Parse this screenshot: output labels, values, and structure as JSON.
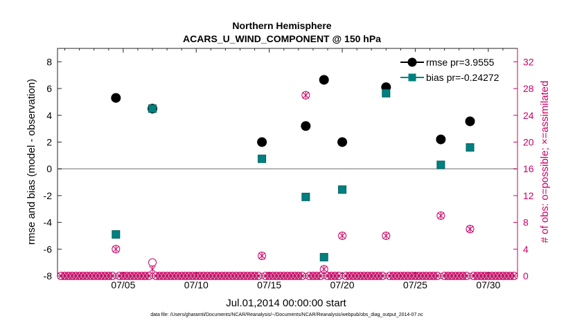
{
  "colors": {
    "rmse": "#000000",
    "bias": "#008080",
    "obs": "#cc0066",
    "zero_line": "#b3b3b3",
    "axis": "#262626"
  },
  "chart_data": {
    "type": "scatter",
    "title": "Northern Hemisphere",
    "subtitle": "ACARS_U_WIND_COMPONENT @ 150 hPa",
    "xlabel": "Jul.01,2014 00:00:00 start",
    "ylabel_left": "rmse and bias (model - observation)",
    "ylabel_right": "# of obs: o=possible; ×=assimilated",
    "xlim": [
      0.5,
      32.0
    ],
    "ylim_left": [
      -8,
      9
    ],
    "ylim_right": [
      0,
      34
    ],
    "x_ticks": [
      5,
      10,
      15,
      20,
      25,
      30
    ],
    "x_tick_labels": [
      "07/05",
      "07/10",
      "07/15",
      "07/20",
      "07/25",
      "07/30"
    ],
    "y_left_ticks": [
      -8,
      -6,
      -4,
      -2,
      0,
      2,
      4,
      6,
      8
    ],
    "y_left_tick_labels": [
      "-8",
      "-6",
      "-4",
      "-2",
      "0",
      "2",
      "4",
      "6",
      "8"
    ],
    "y_right_ticks": [
      0,
      4,
      8,
      12,
      16,
      20,
      24,
      28,
      32
    ],
    "y_right_tick_labels": [
      "0",
      "4",
      "8",
      "12",
      "16",
      "20",
      "24",
      "28",
      "32"
    ],
    "grid": false,
    "legend": {
      "position": "top-right",
      "entries": [
        "rmse pr=3.9555",
        "bias pr=-0.24272"
      ]
    },
    "series": [
      {
        "name": "rmse pr=3.9555",
        "marker": "circle",
        "x": [
          4.5,
          7.0,
          14.5,
          17.5,
          18.75,
          20.0,
          23.0,
          26.75,
          28.75
        ],
        "values": [
          5.3,
          4.5,
          2.0,
          3.2,
          6.65,
          2.0,
          6.1,
          2.2,
          3.55
        ]
      },
      {
        "name": "bias pr=-0.24272",
        "marker": "square",
        "x": [
          4.5,
          7.0,
          14.5,
          17.5,
          18.75,
          20.0,
          23.0,
          26.75,
          28.75
        ],
        "values": [
          -4.9,
          4.5,
          0.75,
          -2.1,
          -6.6,
          -1.55,
          5.65,
          0.3,
          1.6
        ]
      }
    ],
    "obs_possible": {
      "x_start": 0.75,
      "x_step": 0.25,
      "count": 125,
      "nonzero_x": [
        4.5,
        7.0,
        14.5,
        17.5,
        18.75,
        20.0,
        23.0,
        26.75,
        28.75
      ],
      "nonzero_values": [
        4,
        2,
        3,
        27,
        1,
        6,
        6,
        9,
        7
      ]
    },
    "obs_assimilated": {
      "x_start": 0.75,
      "x_step": 0.25,
      "count": 125,
      "nonzero_x": [
        4.5,
        7.0,
        14.5,
        17.5,
        18.75,
        20.0,
        23.0,
        26.75,
        28.75
      ],
      "nonzero_values": [
        4,
        1,
        3,
        27,
        1,
        6,
        6,
        9,
        7
      ]
    },
    "footnote": "data file: /Users/gharamti/Documents/NCAR/Reanalysis/~/Documents/NCAR/Reanalysis/webpub/obs_diag_output_2014-07.nc"
  }
}
